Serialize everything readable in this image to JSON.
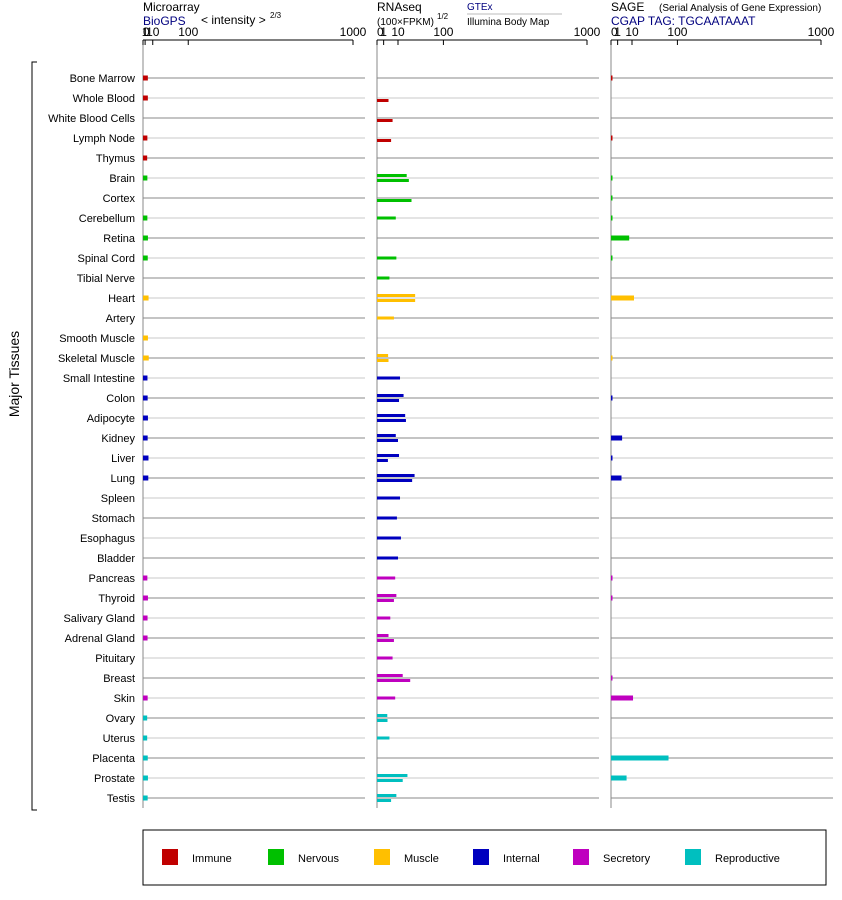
{
  "colors": {
    "Immune": "#c00000",
    "Nervous": "#00c000",
    "Muscle": "#ffbf00",
    "Internal": "#0000bf",
    "Secretory": "#bf00bf",
    "Reproductive": "#00bfbf"
  },
  "y_axis_label": "Major Tissues",
  "legend": [
    "Immune",
    "Nervous",
    "Muscle",
    "Internal",
    "Secretory",
    "Reproductive"
  ],
  "panels": {
    "microarray": {
      "title": "Microarray",
      "subtitle": "BioGPS",
      "subtitle_note": "< intensity >",
      "exponent": "2/3"
    },
    "rnaseq": {
      "title": "RNAseq",
      "subtitle": "(100×FPKM)",
      "exponent": "1/2",
      "source1": "GTEx",
      "source2": "Illumina Body Map"
    },
    "sage": {
      "title": "SAGE",
      "title_note": "(Serial Analysis of Gene Expression)",
      "subtitle": "CGAP TAG: TGCAATAAAT"
    }
  },
  "chart_data": {
    "type": "bar",
    "orientation": "horizontal",
    "x_scale": "power",
    "xlim": [
      0,
      1000
    ],
    "x_ticks": [
      "0",
      "1",
      "10",
      "100",
      "1000"
    ],
    "tissues": [
      {
        "name": "Bone Marrow",
        "system": "Immune",
        "microarray": 3.5,
        "rnaseq": [],
        "sage": 0.01
      },
      {
        "name": "Whole Blood",
        "system": "Immune",
        "microarray": 3.5,
        "rnaseq": [
          null,
          3.0
        ],
        "sage": null
      },
      {
        "name": "White Blood Cells",
        "system": "Immune",
        "microarray": null,
        "rnaseq": [
          null,
          5.5
        ],
        "sage": null
      },
      {
        "name": "Lymph Node",
        "system": "Immune",
        "microarray": 3.0,
        "rnaseq": [
          null,
          4.5
        ],
        "sage": 0.01
      },
      {
        "name": "Thymus",
        "system": "Immune",
        "microarray": 2.8,
        "rnaseq": [],
        "sage": null
      },
      {
        "name": "Brain",
        "system": "Nervous",
        "microarray": 3.0,
        "rnaseq": [
          20,
          23
        ],
        "sage": 0.005
      },
      {
        "name": "Cortex",
        "system": "Nervous",
        "microarray": null,
        "rnaseq": [
          null,
          27
        ],
        "sage": 0.005
      },
      {
        "name": "Cerebellum",
        "system": "Nervous",
        "microarray": 3.0,
        "rnaseq": [
          8
        ],
        "sage": 0.005
      },
      {
        "name": "Retina",
        "system": "Nervous",
        "microarray": 3.6,
        "rnaseq": [],
        "sage": 7.5
      },
      {
        "name": "Spinal Cord",
        "system": "Nervous",
        "microarray": 3.4,
        "rnaseq": [
          8.5
        ],
        "sage": 0.005
      },
      {
        "name": "Tibial Nerve",
        "system": "Nervous",
        "microarray": null,
        "rnaseq": [
          3.5
        ],
        "sage": null
      },
      {
        "name": "Heart",
        "system": "Muscle",
        "microarray": 4.3,
        "rnaseq": [
          33,
          33
        ],
        "sage": 12
      },
      {
        "name": "Artery",
        "system": "Muscle",
        "microarray": null,
        "rnaseq": [
          6.5
        ],
        "sage": null
      },
      {
        "name": "Smooth Muscle",
        "system": "Muscle",
        "microarray": 3.6,
        "rnaseq": [],
        "sage": null
      },
      {
        "name": "Skeletal Muscle",
        "system": "Muscle",
        "microarray": 4.5,
        "rnaseq": [
          2.8,
          3.0
        ],
        "sage": 0.005
      },
      {
        "name": "Small Intestine",
        "system": "Internal",
        "microarray": 3.1,
        "rnaseq": [
          12
        ],
        "sage": null
      },
      {
        "name": "Colon",
        "system": "Internal",
        "microarray": 3.3,
        "rnaseq": [
          16,
          11
        ],
        "sage": 0.01
      },
      {
        "name": "Adipocyte",
        "system": "Internal",
        "microarray": 3.6,
        "rnaseq": [
          18,
          19
        ],
        "sage": null
      },
      {
        "name": "Kidney",
        "system": "Internal",
        "microarray": 3.3,
        "rnaseq": [
          8,
          10
        ],
        "sage": 2.8
      },
      {
        "name": "Liver",
        "system": "Internal",
        "microarray": 4.2,
        "rnaseq": [
          11,
          2.7
        ],
        "sage": 0.01
      },
      {
        "name": "Lung",
        "system": "Internal",
        "microarray": 4.0,
        "rnaseq": [
          32,
          28
        ],
        "sage": 2.5
      },
      {
        "name": "Spleen",
        "system": "Internal",
        "microarray": null,
        "rnaseq": [
          12
        ],
        "sage": null
      },
      {
        "name": "Stomach",
        "system": "Internal",
        "microarray": null,
        "rnaseq": [
          9
        ],
        "sage": null
      },
      {
        "name": "Esophagus",
        "system": "Internal",
        "microarray": null,
        "rnaseq": [
          13
        ],
        "sage": null
      },
      {
        "name": "Bladder",
        "system": "Internal",
        "microarray": null,
        "rnaseq": [
          10
        ],
        "sage": null
      },
      {
        "name": "Pancreas",
        "system": "Secretory",
        "microarray": 3.0,
        "rnaseq": [
          7.5
        ],
        "sage": 0.01
      },
      {
        "name": "Thyroid",
        "system": "Secretory",
        "microarray": 3.6,
        "rnaseq": [
          8.5,
          6.5
        ],
        "sage": 0.01
      },
      {
        "name": "Salivary Gland",
        "system": "Secretory",
        "microarray": 3.2,
        "rnaseq": [
          4
        ],
        "sage": null
      },
      {
        "name": "Adrenal Gland",
        "system": "Secretory",
        "microarray": 3.2,
        "rnaseq": [
          3.0,
          6.5
        ],
        "sage": null
      },
      {
        "name": "Pituitary",
        "system": "Secretory",
        "microarray": null,
        "rnaseq": [
          5.5
        ],
        "sage": null
      },
      {
        "name": "Breast",
        "system": "Secretory",
        "microarray": null,
        "rnaseq": [
          15,
          25
        ],
        "sage": 0.01
      },
      {
        "name": "Skin",
        "system": "Secretory",
        "microarray": 3.3,
        "rnaseq": [
          7.5
        ],
        "sage": 11
      },
      {
        "name": "Ovary",
        "system": "Reproductive",
        "microarray": 2.8,
        "rnaseq": [
          2.4,
          2.5
        ],
        "sage": null
      },
      {
        "name": "Uterus",
        "system": "Reproductive",
        "microarray": 2.8,
        "rnaseq": [
          3.5
        ],
        "sage": null
      },
      {
        "name": "Placenta",
        "system": "Reproductive",
        "microarray": 3.4,
        "rnaseq": [],
        "sage": 75
      },
      {
        "name": "Prostate",
        "system": "Reproductive",
        "microarray": 3.6,
        "rnaseq": [
          21,
          15
        ],
        "sage": 5.5
      },
      {
        "name": "Testis",
        "system": "Reproductive",
        "microarray": 3.3,
        "rnaseq": [
          8.5,
          4.5
        ],
        "sage": null
      }
    ]
  }
}
